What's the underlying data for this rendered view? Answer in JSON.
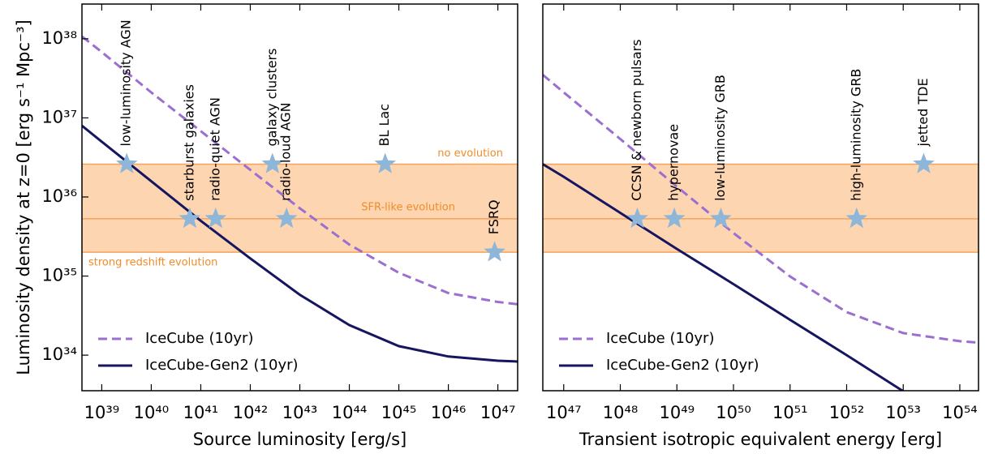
{
  "chart_data": [
    {
      "type": "line",
      "x_label": "Source luminosity [erg/s]",
      "y_label": "Luminosity density at z=0 [erg s⁻¹ Mpc⁻³]",
      "log_x": true,
      "log_y": true,
      "legend": "lower left",
      "xlim": [
        3.98e+38,
        2.51e+47
      ],
      "ylim": [
        3.55e+33,
        2.75e+38
      ],
      "xticks": [
        {
          "value": 1e+39,
          "label": "10³⁹"
        },
        {
          "value": 1e+40,
          "label": "10⁴⁰"
        },
        {
          "value": 1e+41,
          "label": "10⁴¹"
        },
        {
          "value": 1e+42,
          "label": "10⁴²"
        },
        {
          "value": 1e+43,
          "label": "10⁴³"
        },
        {
          "value": 1e+44,
          "label": "10⁴⁴"
        },
        {
          "value": 1e+45,
          "label": "10⁴⁵"
        },
        {
          "value": 1e+46,
          "label": "10⁴⁶"
        },
        {
          "value": 1e+47,
          "label": "10⁴⁷"
        }
      ],
      "yticks": [
        {
          "value": 1e+34,
          "label": "10³⁴"
        },
        {
          "value": 1e+35,
          "label": "10³⁵"
        },
        {
          "value": 1e+36,
          "label": "10³⁶"
        },
        {
          "value": 1e+37,
          "label": "10³⁷"
        },
        {
          "value": 1e+38,
          "label": "10³⁸"
        }
      ],
      "series": [
        {
          "name": "IceCube (10yr)",
          "color": "#9b6fd0",
          "dash": true,
          "x": [
            4e+38,
            1e+39,
            1e+40,
            1e+41,
            1e+42,
            1e+43,
            1e+44,
            1e+45,
            1e+46,
            1e+47,
            2.5e+47
          ],
          "values": [
            1.07e+38,
            6.8e+37,
            2.1e+37,
            6.8e+36,
            2.2e+36,
            7.2e+35,
            2.5e+35,
            1.1e+35,
            6.1e+34,
            4.7e+34,
            4.4e+34
          ]
        },
        {
          "name": "IceCube-Gen2 (10yr)",
          "color": "#151560",
          "dash": false,
          "x": [
            4e+38,
            1e+39,
            1e+40,
            1e+41,
            1e+42,
            1e+43,
            1e+44,
            1e+45,
            1e+46,
            1e+47,
            2.5e+47
          ],
          "values": [
            7.94e+36,
            5e+36,
            1.58e+36,
            5e+35,
            1.67e+35,
            5.8e+34,
            2.4e+34,
            1.3e+34,
            9.6e+33,
            8.5e+33,
            8.3e+33
          ]
        }
      ],
      "band": {
        "lower": 2e+35,
        "middle": 5.3e+35,
        "upper": 2.6e+36,
        "fill": "#fdd5b1",
        "line_color": "#f5a35c"
      },
      "annotations": [
        "no evolution",
        "SFR-like evolution",
        "strong redshift evolution"
      ],
      "sources_color": "#8db6d8",
      "sources": [
        {
          "name": "low-luminosity AGN",
          "x": 3.2e+39,
          "y": 2.6e+36
        },
        {
          "name": "starburst galaxies",
          "x": 6e+40,
          "y": 5.3e+35
        },
        {
          "name": "radio-quiet AGN",
          "x": 2e+41,
          "y": 5.3e+35
        },
        {
          "name": "galaxy clusters",
          "x": 2.8e+42,
          "y": 2.6e+36
        },
        {
          "name": "radio-loud AGN",
          "x": 5.4e+42,
          "y": 5.3e+35
        },
        {
          "name": "BL Lac",
          "x": 5.3e+44,
          "y": 2.6e+36
        },
        {
          "name": "FSRQ",
          "x": 8.6e+46,
          "y": 2e+35
        }
      ]
    },
    {
      "type": "line",
      "x_label": "Transient isotropic equivalent energy [erg]",
      "log_x": true,
      "log_y": true,
      "legend": "lower left",
      "xlim": [
        4.27e+46,
        2.14e+54
      ],
      "ylim": [
        3.55e+33,
        2.75e+38
      ],
      "xticks": [
        {
          "value": 1e+47,
          "label": "10⁴⁷"
        },
        {
          "value": 1e+48,
          "label": "10⁴⁸"
        },
        {
          "value": 1e+49,
          "label": "10⁴⁹"
        },
        {
          "value": 1e+50,
          "label": "10⁵⁰"
        },
        {
          "value": 1e+51,
          "label": "10⁵¹"
        },
        {
          "value": 1e+52,
          "label": "10⁵²"
        },
        {
          "value": 1e+53,
          "label": "10⁵³"
        },
        {
          "value": 1e+54,
          "label": "10⁵⁴"
        }
      ],
      "series": [
        {
          "name": "IceCube (10yr)",
          "color": "#9b6fd0",
          "dash": true,
          "x": [
            4.27e+46,
            1e+47,
            1e+48,
            1e+49,
            1e+50,
            1e+51,
            1e+52,
            1e+53,
            1e+54,
            2.14e+54
          ],
          "values": [
            3.5e+37,
            2.1e+37,
            5.4e+36,
            1.35e+36,
            3.5e+35,
            9.9e+34,
            3.5e+34,
            1.9e+34,
            1.5e+34,
            1.44e+34
          ]
        },
        {
          "name": "IceCube-Gen2 (10yr)",
          "color": "#151560",
          "dash": false,
          "x": [
            4.27e+46,
            1e+47,
            1e+48,
            1e+49,
            1e+50,
            1e+51,
            1e+52,
            1e+53,
            1e+54
          ],
          "values": [
            2.6e+36,
            1.8e+36,
            6.3e+35,
            2.2e+35,
            7.9e+34,
            2.8e+34,
            1e+34,
            3.5e+33,
            1.3e+33
          ]
        }
      ],
      "band": {
        "lower": 2e+35,
        "middle": 5.3e+35,
        "upper": 2.6e+36,
        "fill": "#fdd5b1",
        "line_color": "#f5a35c"
      },
      "sources_color": "#8db6d8",
      "sources": [
        {
          "name": "CCSN & newborn pulsars",
          "x": 2e+48,
          "y": 5.3e+35
        },
        {
          "name": "hypernovae",
          "x": 9e+48,
          "y": 5.3e+35
        },
        {
          "name": "low-luminosity GRB",
          "x": 6e+49,
          "y": 5.3e+35
        },
        {
          "name": "high-luminosity GRB",
          "x": 1.5e+52,
          "y": 5.3e+35
        },
        {
          "name": "jetted TDE",
          "x": 2.3e+53,
          "y": 2.6e+36
        }
      ]
    }
  ]
}
